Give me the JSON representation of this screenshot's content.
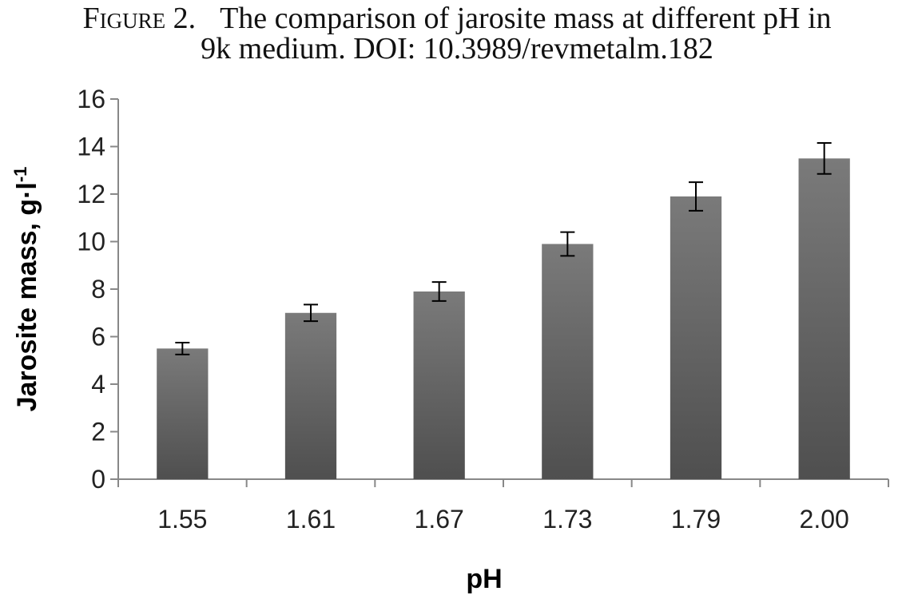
{
  "figure": {
    "label": "Figure 2.",
    "caption_line1": "The comparison of jarosite mass at different pH in",
    "caption_line2": "9k medium. DOI: 10.3989/revmetalm.182"
  },
  "chart_data": {
    "type": "bar",
    "title": "",
    "xlabel": "pH",
    "ylabel": "Jarosite mass, g·l⁻¹",
    "categories": [
      "1.55",
      "1.61",
      "1.67",
      "1.73",
      "1.79",
      "2.00"
    ],
    "values": [
      5.5,
      7.0,
      7.9,
      9.9,
      11.9,
      13.5
    ],
    "error": [
      0.25,
      0.35,
      0.4,
      0.5,
      0.6,
      0.65
    ],
    "ylim": [
      0,
      16
    ],
    "yticks": [
      0,
      2,
      4,
      6,
      8,
      10,
      12,
      14,
      16
    ],
    "grid": false,
    "legend": "none",
    "colors": {
      "bar_top": "#7a7a7a",
      "bar_bottom": "#4f4f4f",
      "axis": "#888888",
      "error_bar": "#000000"
    }
  }
}
